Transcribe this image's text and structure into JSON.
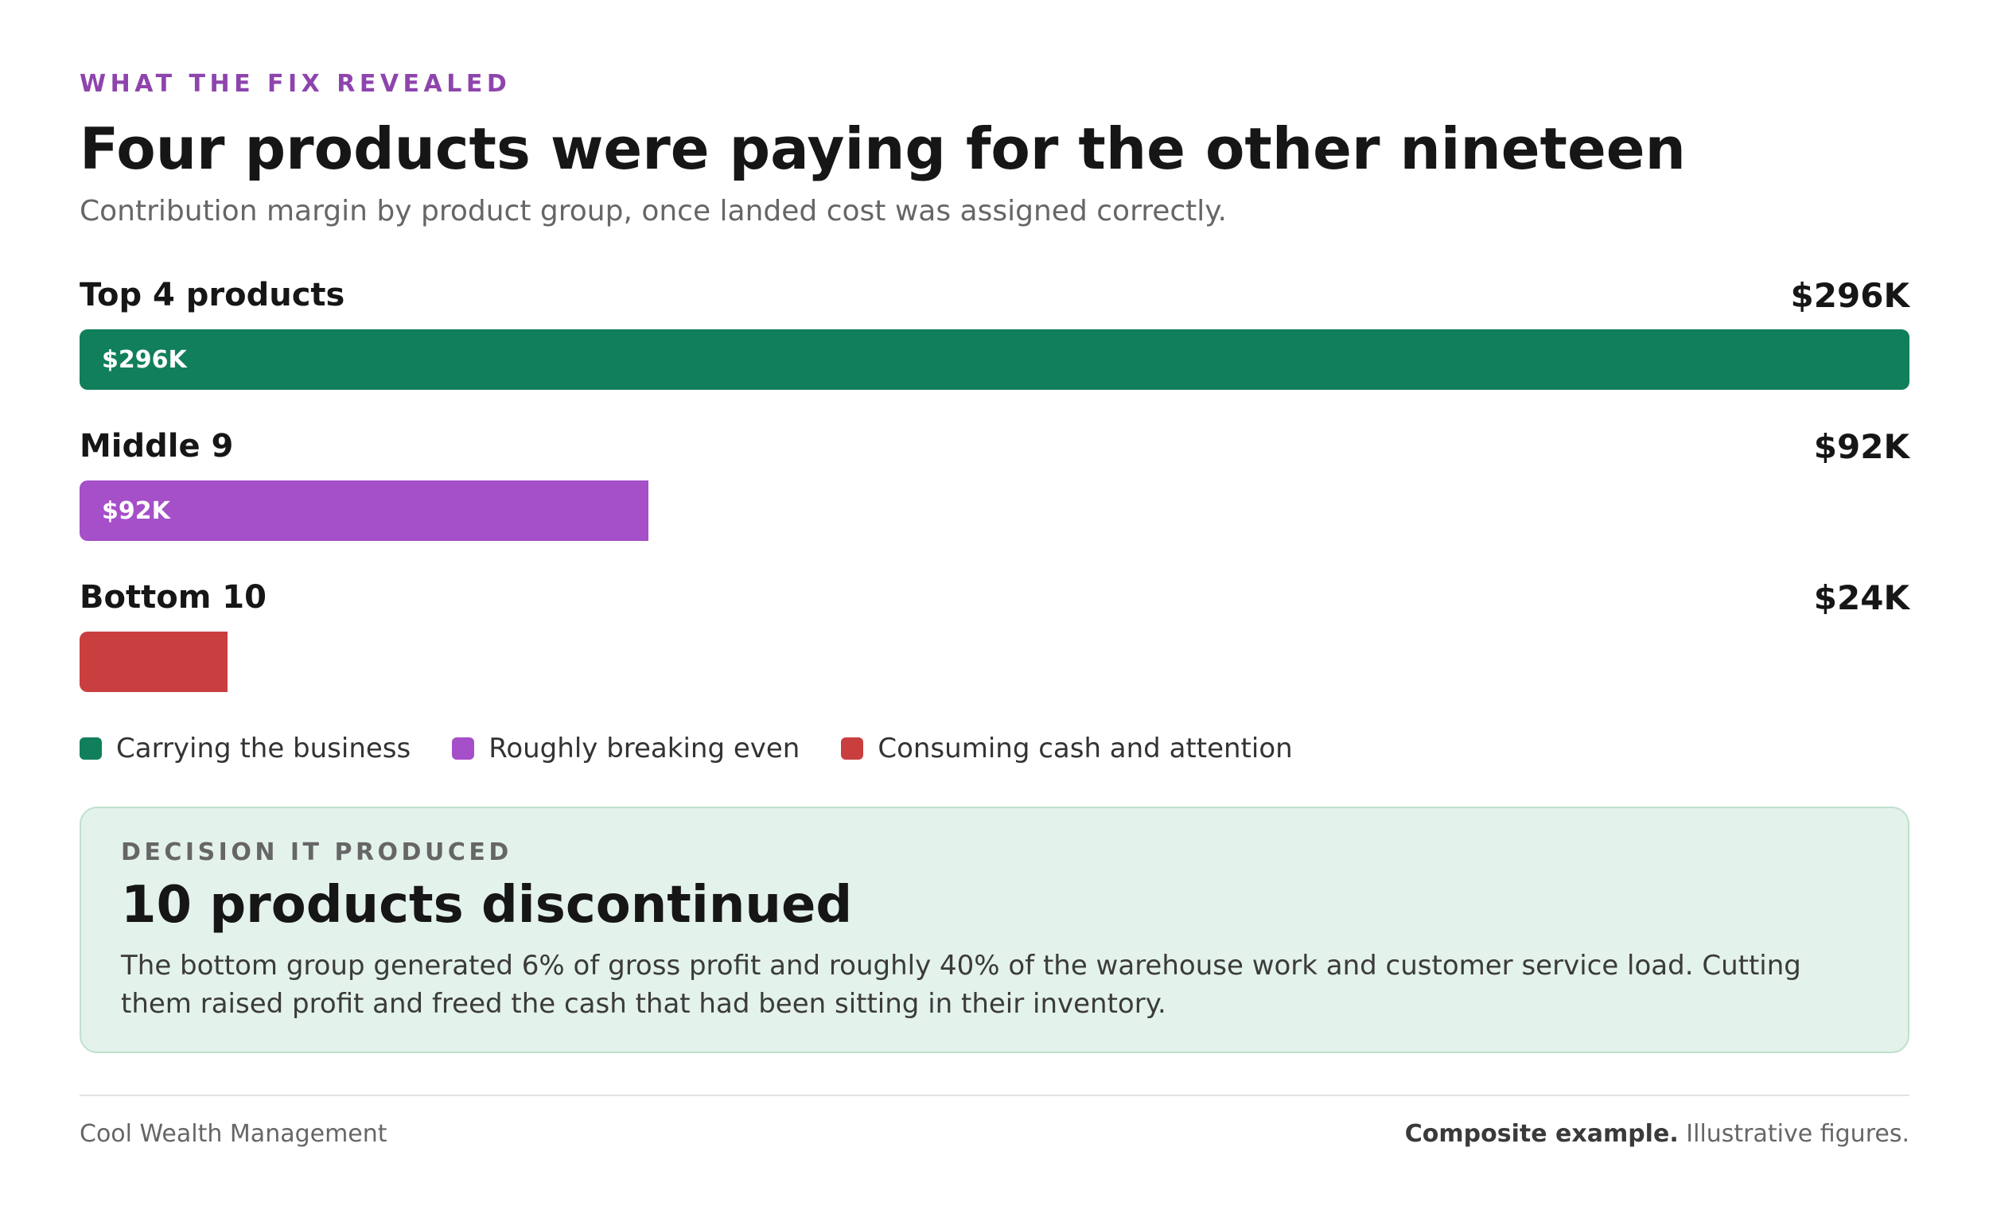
{
  "header": {
    "eyebrow": "WHAT THE FIX REVEALED",
    "title": "Four products were paying for the other nineteen",
    "subtitle": "Contribution margin by product group, once landed cost was assigned correctly."
  },
  "chart_data": {
    "type": "bar",
    "orientation": "horizontal",
    "title": "Four products were paying for the other nineteen",
    "subtitle": "Contribution margin by product group, once landed cost was assigned correctly.",
    "categories": [
      "Top 4 products",
      "Middle 9",
      "Bottom 10"
    ],
    "values": [
      296,
      92,
      24
    ],
    "unit": "$K",
    "value_labels": [
      "$296K",
      "$92K",
      "$24K"
    ],
    "bar_labels": [
      "$296K",
      "$92K",
      ""
    ],
    "colors": [
      "#117f5b",
      "#a54fc8",
      "#c93f40"
    ],
    "xlim": [
      0,
      296
    ],
    "grid": false,
    "legend_position": "bottom-left",
    "legend": [
      {
        "label": "Carrying the business",
        "color": "#117f5b"
      },
      {
        "label": "Roughly breaking even",
        "color": "#a54fc8"
      },
      {
        "label": "Consuming cash and attention",
        "color": "#c93f40"
      }
    ]
  },
  "decision": {
    "eyebrow": "DECISION IT PRODUCED",
    "title": "10 products discontinued",
    "body": "The bottom group generated 6% of gross profit and roughly 40% of the warehouse work and customer service load. Cutting them raised profit and freed the cash that had been sitting in their inventory."
  },
  "footer": {
    "left": "Cool Wealth Management",
    "right_bold": "Composite example.",
    "right_rest": " Illustrative figures."
  }
}
